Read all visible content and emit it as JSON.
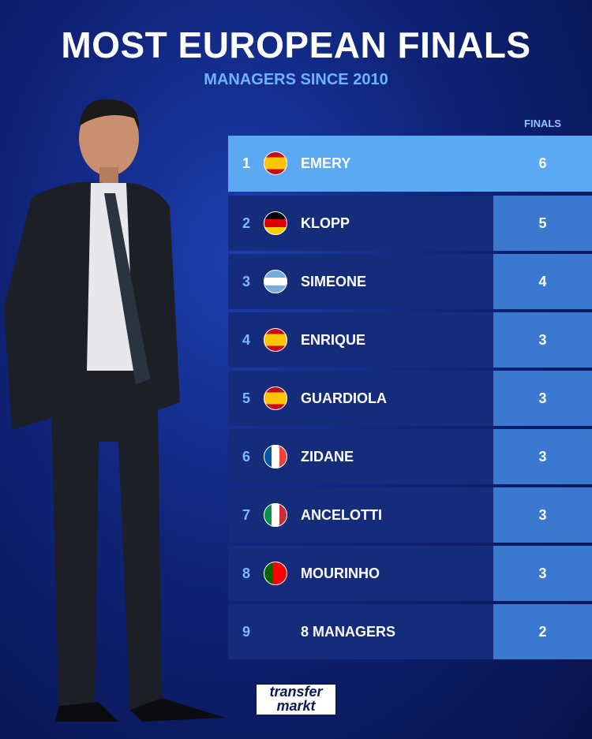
{
  "header": {
    "title": "MOST EUROPEAN FINALS",
    "subtitle": "MANAGERS SINCE 2010"
  },
  "table": {
    "column_header": "FINALS",
    "rows": [
      [
        1,
        "EMERY",
        6
      ],
      [
        2,
        "KLOPP",
        5
      ],
      [
        3,
        "SIMEONE",
        4
      ],
      [
        4,
        "ENRIQUE",
        3
      ],
      [
        5,
        "GUARDIOLA",
        3
      ],
      [
        6,
        "ZIDANE",
        3
      ],
      [
        7,
        "ANCELOTTI",
        3
      ],
      [
        8,
        "MOURINHO",
        3
      ],
      [
        9,
        "8 MANAGERS",
        2
      ]
    ]
  },
  "logo": {
    "line1": "transfer",
    "line2": "markt"
  }
}
